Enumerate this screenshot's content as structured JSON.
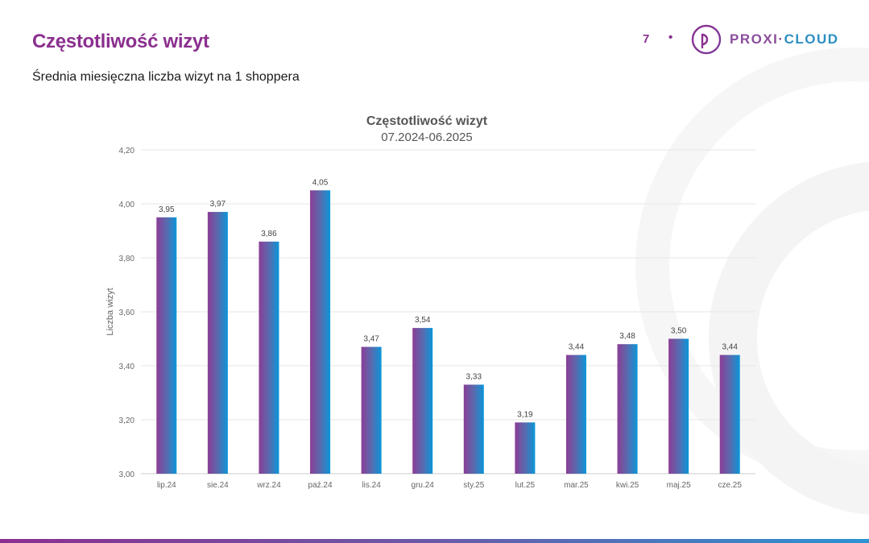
{
  "header": {
    "title": "Częstotliwość wizyt",
    "subtitle": "Średnia miesięczna liczba wizyt na 1 shoppera",
    "page_number": "7",
    "separator": "•",
    "logo_part1": "PROXI·",
    "logo_part2": "CLOUD"
  },
  "colors": {
    "brand_purple": "#8b2f8f",
    "brand_blue": "#2b93d1",
    "bar_left": "#8b3d96",
    "bar_right": "#0a96d8"
  },
  "chart_data": {
    "type": "bar",
    "title": "Częstotliwość wizyt",
    "subtitle": "07.2024-06.2025",
    "xlabel": "",
    "ylabel": "Liczba wizyt",
    "ylim": [
      3.0,
      4.2
    ],
    "yticks": [
      "3,00",
      "3,20",
      "3,40",
      "3,60",
      "3,80",
      "4,00",
      "4,20"
    ],
    "ytick_values": [
      3.0,
      3.2,
      3.4,
      3.6,
      3.8,
      4.0,
      4.2
    ],
    "grid": true,
    "categories": [
      "lip.24",
      "sie.24",
      "wrz.24",
      "paź.24",
      "lis.24",
      "gru.24",
      "sty.25",
      "lut.25",
      "mar.25",
      "kwi.25",
      "maj.25",
      "cze.25"
    ],
    "values": [
      3.95,
      3.97,
      3.86,
      4.05,
      3.47,
      3.54,
      3.33,
      3.19,
      3.44,
      3.48,
      3.5,
      3.44
    ],
    "labels": [
      "3,95",
      "3,97",
      "3,86",
      "4,05",
      "3,47",
      "3,54",
      "3,33",
      "3,19",
      "3,44",
      "3,48",
      "3,50",
      "3,44"
    ]
  }
}
